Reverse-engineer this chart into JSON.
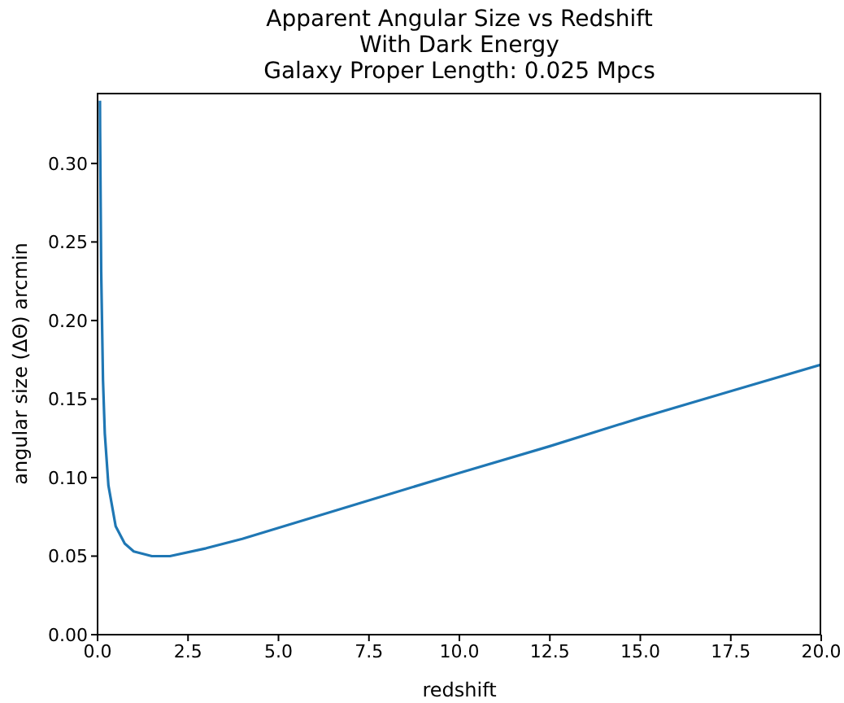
{
  "chart_data": {
    "type": "line",
    "title": "Apparent Angular Size vs Redshift\nWith Dark Energy\nGalaxy Proper Length: 0.025 Mpcs",
    "xlabel": "redshift",
    "ylabel": "angular size (ΔΘ) arcmin",
    "xlim": [
      0,
      20
    ],
    "ylim": [
      0,
      0.345
    ],
    "xticks": [
      {
        "value": 0,
        "label": "0.0"
      },
      {
        "value": 2.5,
        "label": "2.5"
      },
      {
        "value": 5,
        "label": "5.0"
      },
      {
        "value": 7.5,
        "label": "7.5"
      },
      {
        "value": 10,
        "label": "10.0"
      },
      {
        "value": 12.5,
        "label": "12.5"
      },
      {
        "value": 15,
        "label": "15.0"
      },
      {
        "value": 17.5,
        "label": "17.5"
      },
      {
        "value": 20,
        "label": "20.0"
      }
    ],
    "yticks": [
      {
        "value": 0,
        "label": "0.00"
      },
      {
        "value": 0.05,
        "label": "0.05"
      },
      {
        "value": 0.1,
        "label": "0.10"
      },
      {
        "value": 0.15,
        "label": "0.15"
      },
      {
        "value": 0.2,
        "label": "0.20"
      },
      {
        "value": 0.25,
        "label": "0.25"
      },
      {
        "value": 0.3,
        "label": "0.30"
      }
    ],
    "marker": "none",
    "line_style": "solid",
    "series": [
      {
        "color": "#1f77b4",
        "x": [
          0.066,
          0.07,
          0.1,
          0.15,
          0.2,
          0.3,
          0.5,
          0.75,
          1,
          1.5,
          2,
          3,
          4,
          5,
          7,
          10,
          12.5,
          15,
          17.5,
          20
        ],
        "values": [
          0.34,
          0.32,
          0.231,
          0.162,
          0.128,
          0.095,
          0.069,
          0.058,
          0.053,
          0.05,
          0.05,
          0.055,
          0.061,
          0.068,
          0.082,
          0.103,
          0.12,
          0.138,
          0.155,
          0.172
        ]
      }
    ]
  }
}
